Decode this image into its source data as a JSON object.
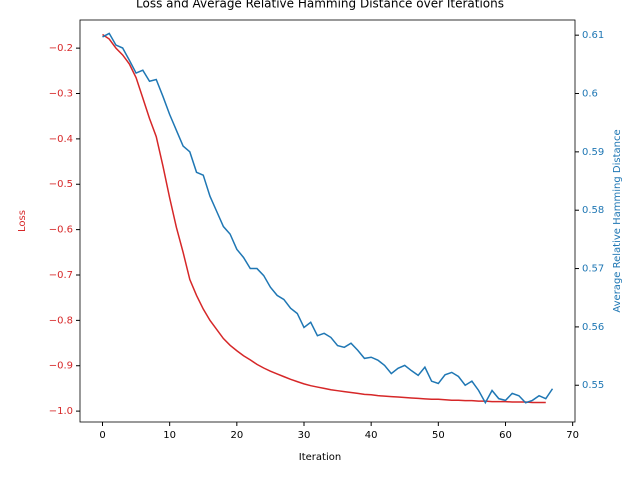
{
  "chart_data": {
    "type": "line",
    "title": "Loss and Average Relative Hamming Distance over Iterations",
    "x_label": "Iteration",
    "y_label": "Loss",
    "y2_label": "Average Relative Hamming Distance",
    "xlim": [
      -3.35,
      70.35
    ],
    "xticks": [
      0,
      10,
      20,
      30,
      40,
      50,
      60,
      70
    ],
    "ylim": [
      -1.024,
      -0.138
    ],
    "yticks": [
      {
        "value": -1.0,
        "label": "−1.0"
      },
      {
        "value": -0.9,
        "label": "−0.9"
      },
      {
        "value": -0.8,
        "label": "−0.8"
      },
      {
        "value": -0.7,
        "label": "−0.7"
      },
      {
        "value": -0.6,
        "label": "−0.6"
      },
      {
        "value": -0.5,
        "label": "−0.5"
      },
      {
        "value": -0.4,
        "label": "−0.4"
      },
      {
        "value": -0.3,
        "label": "−0.3"
      },
      {
        "value": -0.2,
        "label": "−0.2"
      }
    ],
    "y2lim": [
      0.5437,
      0.6126
    ],
    "y2ticks": [
      0.55,
      0.56,
      0.57,
      0.58,
      0.59,
      0.6,
      0.61
    ],
    "series": [
      {
        "name": "Loss",
        "color": "#d62728",
        "x": [
          0,
          1,
          2,
          3,
          4,
          5,
          6,
          7,
          8,
          9,
          10,
          11,
          12,
          13,
          14,
          15,
          16,
          17,
          18,
          19,
          20,
          21,
          22,
          23,
          24,
          25,
          26,
          27,
          28,
          29,
          30,
          31,
          32,
          33,
          34,
          35,
          36,
          37,
          38,
          39,
          40,
          41,
          42,
          43,
          44,
          45,
          46,
          47,
          48,
          49,
          50,
          51,
          52,
          53,
          54,
          55,
          56,
          57,
          58,
          59,
          60,
          61,
          62,
          63,
          64,
          65,
          66
        ],
        "values": [
          -0.17,
          -0.18,
          -0.2,
          -0.215,
          -0.235,
          -0.265,
          -0.31,
          -0.355,
          -0.395,
          -0.46,
          -0.53,
          -0.595,
          -0.65,
          -0.71,
          -0.745,
          -0.775,
          -0.8,
          -0.82,
          -0.84,
          -0.855,
          -0.867,
          -0.878,
          -0.887,
          -0.897,
          -0.905,
          -0.912,
          -0.918,
          -0.924,
          -0.93,
          -0.935,
          -0.94,
          -0.944,
          -0.947,
          -0.95,
          -0.953,
          -0.955,
          -0.957,
          -0.959,
          -0.961,
          -0.963,
          -0.964,
          -0.966,
          -0.967,
          -0.968,
          -0.969,
          -0.97,
          -0.971,
          -0.972,
          -0.973,
          -0.974,
          -0.974,
          -0.975,
          -0.976,
          -0.976,
          -0.977,
          -0.977,
          -0.978,
          -0.978,
          -0.979,
          -0.979,
          -0.979,
          -0.98,
          -0.98,
          -0.98,
          -0.981,
          -0.981,
          -0.981
        ]
      },
      {
        "name": "Average Relative Hamming Distance",
        "color": "#1f77b4",
        "axis": "y2",
        "x": [
          0,
          1,
          2,
          3,
          4,
          5,
          6,
          7,
          8,
          9,
          10,
          11,
          12,
          13,
          14,
          15,
          16,
          17,
          18,
          19,
          20,
          21,
          22,
          23,
          24,
          25,
          26,
          27,
          28,
          29,
          30,
          31,
          32,
          33,
          34,
          35,
          36,
          37,
          38,
          39,
          40,
          41,
          42,
          43,
          44,
          45,
          46,
          47,
          48,
          49,
          50,
          51,
          52,
          53,
          54,
          55,
          56,
          57,
          58,
          59,
          60,
          61,
          62,
          63,
          64,
          65,
          66,
          67
        ],
        "values": [
          0.6097,
          0.6103,
          0.6083,
          0.6078,
          0.6057,
          0.6035,
          0.604,
          0.6021,
          0.6024,
          0.5995,
          0.5964,
          0.5937,
          0.591,
          0.59,
          0.5865,
          0.586,
          0.5824,
          0.5798,
          0.5772,
          0.5759,
          0.5733,
          0.5719,
          0.57,
          0.57,
          0.5688,
          0.5668,
          0.5654,
          0.5647,
          0.5632,
          0.5623,
          0.5599,
          0.5608,
          0.5585,
          0.5589,
          0.5582,
          0.5568,
          0.5565,
          0.5572,
          0.556,
          0.5546,
          0.5548,
          0.5543,
          0.5534,
          0.552,
          0.5529,
          0.5534,
          0.5525,
          0.5517,
          0.5531,
          0.5507,
          0.5503,
          0.5518,
          0.5522,
          0.5515,
          0.55,
          0.5507,
          0.5491,
          0.547,
          0.5491,
          0.5477,
          0.5474,
          0.5486,
          0.5482,
          0.547,
          0.5474,
          0.5482,
          0.5477,
          0.5494
        ]
      }
    ]
  }
}
